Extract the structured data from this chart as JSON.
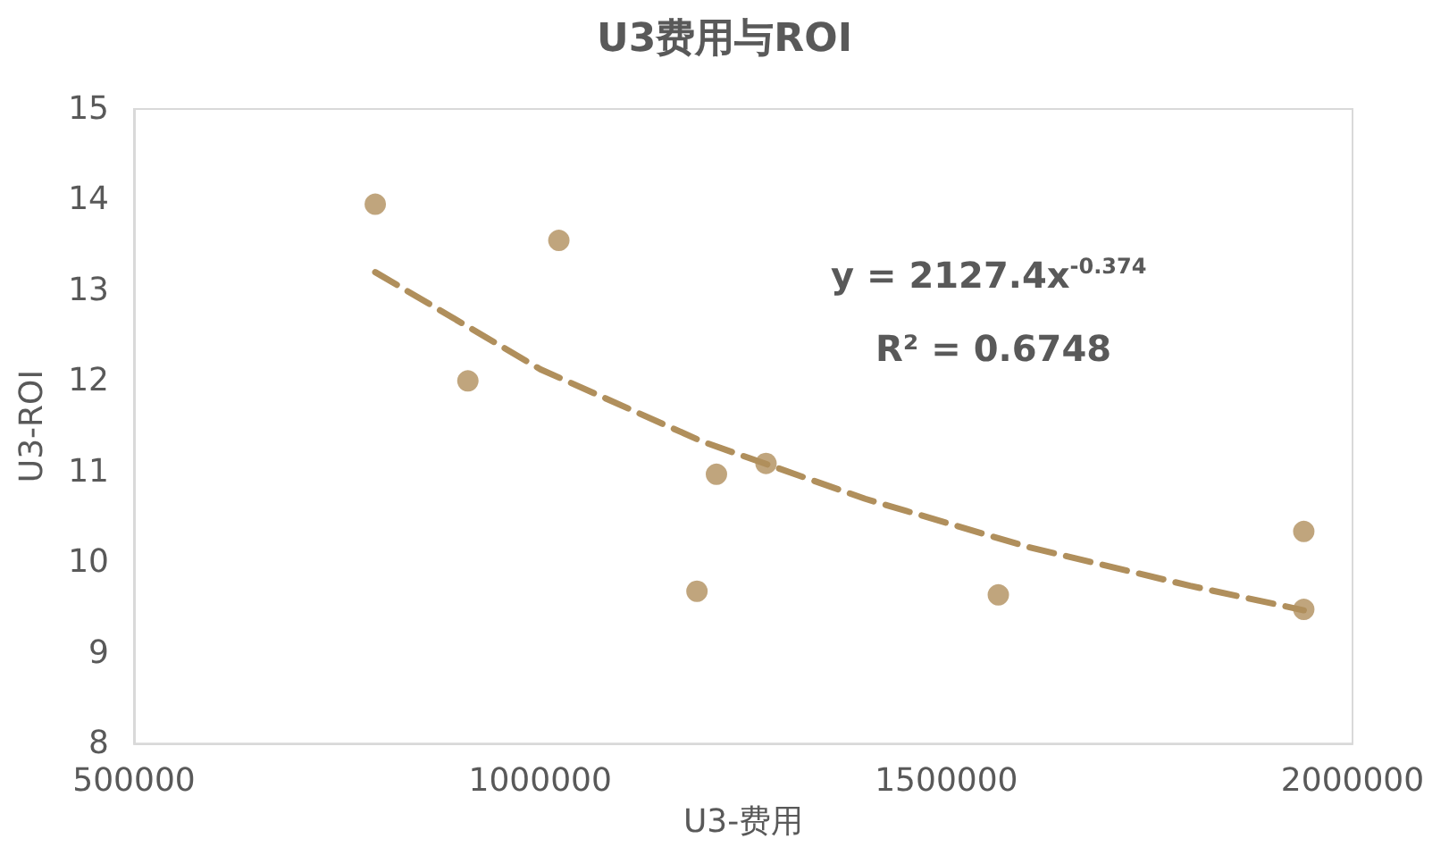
{
  "chart_data": {
    "type": "scatter",
    "title": "U3费用与ROI",
    "xlabel": "U3-费用",
    "ylabel": "U3-ROI",
    "xlim": [
      500000,
      2000000
    ],
    "xticks": [
      500000,
      1000000,
      1500000,
      2000000
    ],
    "ylim": [
      8,
      15
    ],
    "yticks": [
      8,
      9,
      10,
      11,
      12,
      13,
      14,
      15
    ],
    "grid": false,
    "annotations": [
      "y = 2127.4x$^{-0.374}$",
      "R² = 0.6748"
    ],
    "series": [
      {
        "color": "#b08f5c",
        "marker": "circle",
        "x": [
          797000,
          911000,
          1023000,
          1193000,
          1217000,
          1278000,
          1564000,
          1940000,
          1940000
        ],
        "values": [
          13.95,
          12.0,
          13.55,
          9.68,
          10.97,
          11.09,
          9.64,
          10.34,
          9.48
        ]
      },
      {
        "type": "line",
        "color": "#b08f5c",
        "marker": "none",
        "line_style": "dashed",
        "x": [
          797000,
          1000000,
          1200000,
          1400000,
          1600000,
          1800000,
          1940000
        ],
        "values": [
          13.2,
          12.13,
          11.33,
          10.7,
          10.17,
          9.74,
          9.47
        ]
      }
    ]
  }
}
